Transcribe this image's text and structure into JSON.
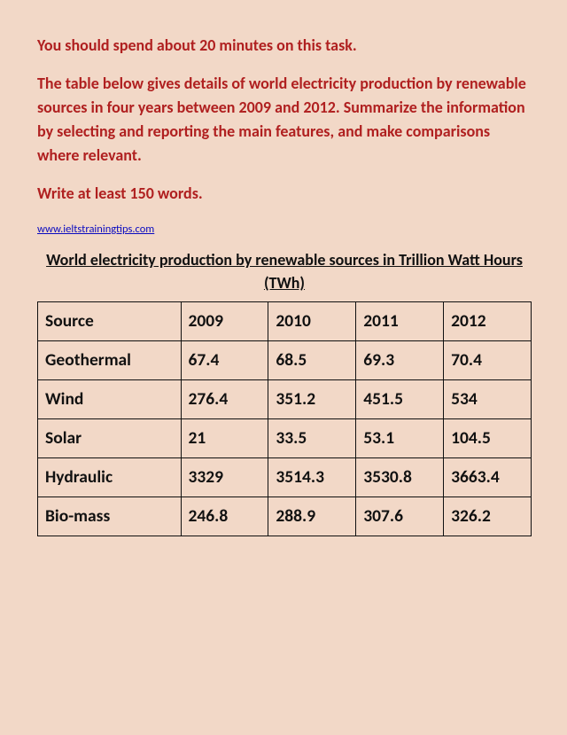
{
  "instructions": {
    "line1": "You should spend about 20 minutes on this task.",
    "line2": "The table below gives details of world electricity production by renewable sources in four years between 2009 and 2012. Summarize the information by selecting and reporting the main features, and make comparisons where relevant.",
    "line3": "Write at least 150 words."
  },
  "link_text": "www.ieltstrainingtips.com",
  "table_title": "World electricity production by renewable sources in Trillion Watt Hours (TWh)",
  "colors": {
    "page_bg": "#f2d8c7",
    "instruction_text": "#b02020",
    "link": "#0a0ac0",
    "border": "#111111",
    "text": "#111111"
  },
  "table": {
    "type": "table",
    "columns": [
      "Source",
      "2009",
      "2010",
      "2011",
      "2012"
    ],
    "rows": [
      [
        "Geothermal",
        "67.4",
        "68.5",
        "69.3",
        "70.4"
      ],
      [
        "Wind",
        "276.4",
        "351.2",
        "451.5",
        "534"
      ],
      [
        "Solar",
        "21",
        "33.5",
        "53.1",
        "104.5"
      ],
      [
        "Hydraulic",
        "3329",
        "3514.3",
        "3530.8",
        "3663.4"
      ],
      [
        "Bio-mass",
        "246.8",
        "288.9",
        "307.6",
        "326.2"
      ]
    ],
    "col_widths_pct": [
      29,
      17.75,
      17.75,
      17.75,
      17.75
    ],
    "cell_fontsize": 19.5,
    "cell_fontweight": 700,
    "border_width": 1.3
  },
  "typography": {
    "instruction_fontsize": 18,
    "instruction_fontweight": 700,
    "title_fontsize": 18,
    "link_fontsize": 12.5,
    "font_family": "Calibri"
  }
}
